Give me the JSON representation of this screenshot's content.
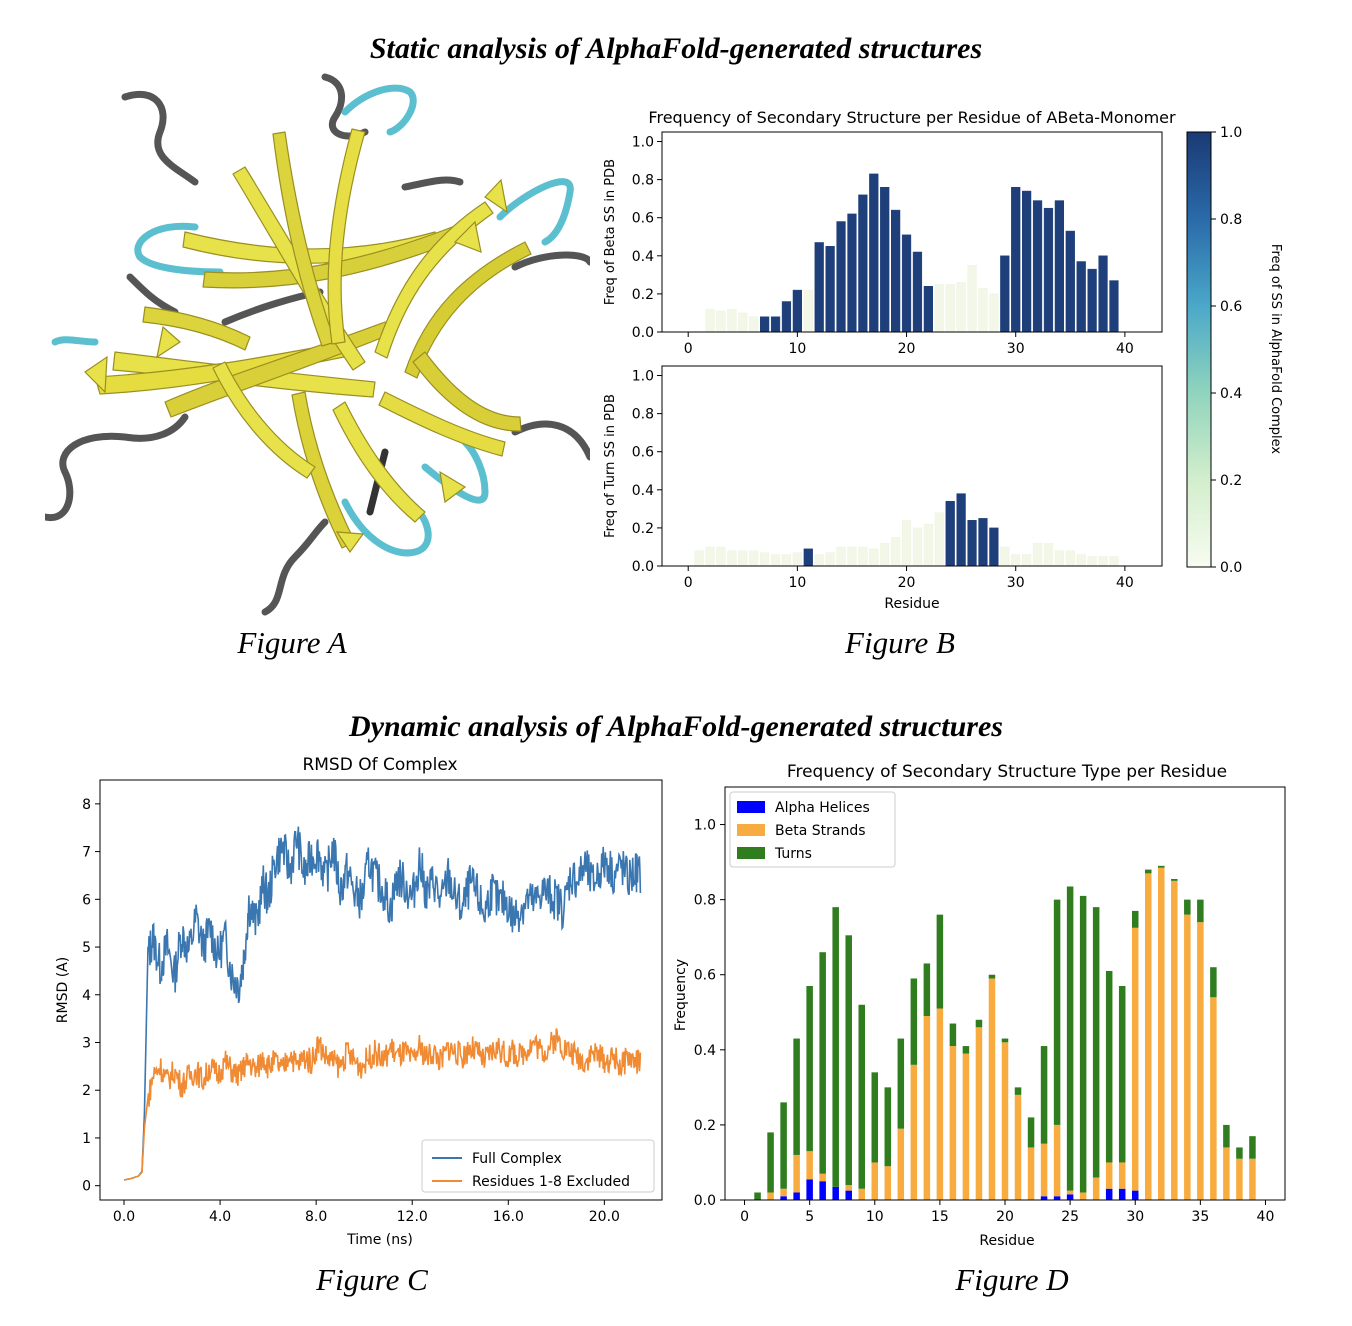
{
  "titles": {
    "static": "Static analysis of AlphaFold-generated structures",
    "dynamic": "Dynamic analysis of AlphaFold-generated structures"
  },
  "captions": {
    "a": "Figure A",
    "b": "Figure B",
    "c": "Figure C",
    "d": "Figure D"
  },
  "colors": {
    "strand": "#e8e24a",
    "strand_shade": "#b8ac2a",
    "coil": "#555555",
    "turn": "#5bbfd0",
    "dark_blue": "#1f3f7a",
    "pale": "#f3f7e8",
    "blue_series": "#3a76b0",
    "orange_series": "#f08a33",
    "alpha": "#0000ff",
    "beta": "#f8ac40",
    "turns": "#2f7d1f"
  },
  "chart_data": [
    {
      "id": "B",
      "type": "bar",
      "title": "Frequency of Secondary Structure per Residue of ABeta-Monomer",
      "colorbar_label": "Freq of SS in AlphaFold Complex",
      "colorbar_ticks": [
        "0.0",
        "0.2",
        "0.4",
        "0.6",
        "0.8",
        "1.0"
      ],
      "xlabel": "Residue",
      "x": [
        0,
        1,
        2,
        3,
        4,
        5,
        6,
        7,
        8,
        9,
        10,
        11,
        12,
        13,
        14,
        15,
        16,
        17,
        18,
        19,
        20,
        21,
        22,
        23,
        24,
        25,
        26,
        27,
        28,
        29,
        30,
        31,
        32,
        33,
        34,
        35,
        36,
        37,
        38,
        39,
        40
      ],
      "xticks": [
        "0",
        "10",
        "20",
        "30",
        "40"
      ],
      "yticks": [
        "0.0",
        "0.2",
        "0.4",
        "0.6",
        "0.8",
        "1.0"
      ],
      "panels": [
        {
          "ylabel": "Freq of Beta SS in PDB",
          "ylim": [
            0,
            1.05
          ],
          "values": [
            0,
            0,
            0.12,
            0.11,
            0.12,
            0.1,
            0.08,
            0.08,
            0.08,
            0.16,
            0.22,
            0.22,
            0.47,
            0.45,
            0.58,
            0.62,
            0.72,
            0.83,
            0.76,
            0.64,
            0.51,
            0.42,
            0.24,
            0.25,
            0.25,
            0.26,
            0.35,
            0.23,
            0.2,
            0.4,
            0.76,
            0.74,
            0.69,
            0.65,
            0.69,
            0.53,
            0.37,
            0.33,
            0.4,
            0.27,
            0
          ],
          "highlight": [
            false,
            false,
            false,
            false,
            false,
            false,
            false,
            true,
            true,
            true,
            true,
            false,
            true,
            true,
            true,
            true,
            true,
            true,
            true,
            true,
            true,
            true,
            true,
            false,
            false,
            false,
            false,
            false,
            false,
            true,
            true,
            true,
            true,
            true,
            true,
            true,
            true,
            true,
            true,
            true,
            false
          ]
        },
        {
          "ylabel": "Freq of Turn SS in PDB",
          "ylim": [
            0,
            1.05
          ],
          "values": [
            0,
            0.08,
            0.1,
            0.1,
            0.08,
            0.08,
            0.08,
            0.07,
            0.06,
            0.06,
            0.07,
            0.09,
            0.06,
            0.07,
            0.1,
            0.1,
            0.1,
            0.09,
            0.12,
            0.15,
            0.24,
            0.2,
            0.22,
            0.28,
            0.34,
            0.38,
            0.24,
            0.25,
            0.2,
            0.1,
            0.06,
            0.06,
            0.12,
            0.12,
            0.08,
            0.08,
            0.06,
            0.05,
            0.05,
            0.05,
            0
          ],
          "highlight": [
            false,
            false,
            false,
            false,
            false,
            false,
            false,
            false,
            false,
            false,
            false,
            true,
            false,
            false,
            false,
            false,
            false,
            false,
            false,
            false,
            false,
            false,
            false,
            false,
            true,
            true,
            true,
            true,
            true,
            false,
            false,
            false,
            false,
            false,
            false,
            false,
            false,
            false,
            false,
            false,
            false
          ]
        }
      ]
    },
    {
      "id": "C",
      "type": "line",
      "title": "RMSD Of Complex",
      "xlabel": "Time (ns)",
      "ylabel": "RMSD (A)",
      "xlim": [
        -1,
        22.4
      ],
      "ylim": [
        -0.3,
        8.5
      ],
      "xticks": [
        "0.0",
        "4.0",
        "8.0",
        "12.0",
        "16.0",
        "20.0"
      ],
      "yticks": [
        "0",
        "1",
        "2",
        "3",
        "4",
        "5",
        "6",
        "7",
        "8"
      ],
      "legend_position": "lower-right",
      "series": [
        {
          "name": "Full Complex",
          "x": [
            0,
            0.3,
            0.6,
            0.75,
            0.85,
            1,
            1.2,
            1.5,
            1.8,
            2.1,
            2.4,
            2.7,
            3,
            3.3,
            3.6,
            3.9,
            4.2,
            4.5,
            4.8,
            5,
            5.2,
            5.5,
            5.8,
            6,
            6.3,
            6.6,
            6.9,
            7.2,
            7.5,
            7.8,
            8.1,
            8.4,
            8.7,
            9,
            9.3,
            9.6,
            9.9,
            10.2,
            10.5,
            10.8,
            11.1,
            11.4,
            11.7,
            12,
            12.3,
            12.6,
            12.9,
            13.2,
            13.5,
            13.8,
            14.1,
            14.4,
            14.7,
            15,
            15.3,
            15.6,
            15.9,
            16.2,
            16.5,
            16.8,
            17.1,
            17.4,
            17.7,
            18,
            18.3,
            18.6,
            18.9,
            19.2,
            19.5,
            19.8,
            20.1,
            20.4,
            20.7,
            21,
            21.3,
            21.5
          ],
          "y": [
            0.12,
            0.15,
            0.2,
            0.3,
            1.5,
            4.8,
            5.2,
            4.6,
            5.0,
            4.4,
            5.3,
            4.9,
            5.6,
            5.0,
            5.4,
            4.8,
            5.2,
            4.4,
            4.2,
            4.8,
            5.9,
            5.5,
            6.3,
            6.0,
            6.8,
            7.1,
            6.6,
            7.3,
            6.5,
            6.9,
            7.0,
            6.4,
            7.1,
            6.2,
            6.6,
            6.1,
            6.0,
            6.8,
            6.4,
            6.2,
            5.8,
            6.5,
            6.3,
            6.0,
            6.8,
            6.1,
            6.4,
            5.9,
            6.5,
            6.0,
            5.8,
            6.3,
            6.1,
            5.7,
            6.2,
            5.9,
            6.0,
            5.6,
            5.8,
            6.0,
            5.9,
            6.2,
            6.1,
            6.0,
            5.8,
            6.5,
            6.4,
            6.7,
            6.3,
            6.6,
            6.8,
            6.5,
            6.7,
            6.4,
            6.6,
            6.5
          ]
        },
        {
          "name": "Residues 1-8 Excluded",
          "x": [
            0,
            0.3,
            0.6,
            0.75,
            0.85,
            1,
            1.2,
            1.5,
            1.8,
            2.1,
            2.4,
            2.7,
            3,
            3.3,
            3.6,
            3.9,
            4.2,
            4.5,
            4.8,
            5,
            5.2,
            5.5,
            5.8,
            6,
            6.3,
            6.6,
            6.9,
            7.2,
            7.5,
            7.8,
            8.1,
            8.4,
            8.7,
            9,
            9.3,
            9.6,
            9.9,
            10.2,
            10.5,
            10.8,
            11.1,
            11.4,
            11.7,
            12,
            12.3,
            12.6,
            12.9,
            13.2,
            13.5,
            13.8,
            14.1,
            14.4,
            14.7,
            15,
            15.3,
            15.6,
            15.9,
            16.2,
            16.5,
            16.8,
            17.1,
            17.4,
            17.7,
            18,
            18.3,
            18.6,
            18.9,
            19.2,
            19.5,
            19.8,
            20.1,
            20.4,
            20.7,
            21,
            21.3,
            21.5
          ],
          "y": [
            0.12,
            0.15,
            0.2,
            0.28,
            1.2,
            1.8,
            2.3,
            2.5,
            2.2,
            2.4,
            2.1,
            2.3,
            2.4,
            2.2,
            2.5,
            2.3,
            2.6,
            2.4,
            2.3,
            2.5,
            2.6,
            2.4,
            2.7,
            2.5,
            2.6,
            2.4,
            2.8,
            2.5,
            2.7,
            2.6,
            3.0,
            2.7,
            2.6,
            2.5,
            2.8,
            2.6,
            2.5,
            2.7,
            2.8,
            2.6,
            2.9,
            2.7,
            2.8,
            2.6,
            2.9,
            2.7,
            2.8,
            2.6,
            2.9,
            2.8,
            2.7,
            2.9,
            2.8,
            2.6,
            2.8,
            2.9,
            2.7,
            2.8,
            2.7,
            2.9,
            3.0,
            2.8,
            2.9,
            3.1,
            2.9,
            2.8,
            2.7,
            2.6,
            2.8,
            2.7,
            2.6,
            2.7,
            2.5,
            2.7,
            2.6,
            2.6
          ]
        }
      ]
    },
    {
      "id": "D",
      "type": "bar",
      "title": "Frequency of Secondary Structure Type per Residue",
      "xlabel": "Residue",
      "ylabel": "Frequency",
      "xlim": [
        -1.5,
        41.5
      ],
      "ylim": [
        0,
        1.1
      ],
      "xticks": [
        "0",
        "5",
        "10",
        "15",
        "20",
        "25",
        "30",
        "35",
        "40"
      ],
      "yticks": [
        "0.0",
        "0.2",
        "0.4",
        "0.6",
        "0.8",
        "1.0"
      ],
      "legend_position": "top-left",
      "categories": [
        1,
        2,
        3,
        4,
        5,
        6,
        7,
        8,
        9,
        10,
        11,
        12,
        13,
        14,
        15,
        16,
        17,
        18,
        19,
        20,
        21,
        22,
        23,
        24,
        25,
        26,
        27,
        28,
        29,
        30,
        31,
        32,
        33,
        34,
        35,
        36,
        37,
        38,
        39
      ],
      "series": [
        {
          "name": "Alpha Helices",
          "values": [
            0,
            0,
            0.01,
            0.02,
            0.055,
            0.05,
            0.035,
            0.025,
            0,
            0,
            0,
            0,
            0,
            0,
            0,
            0,
            0,
            0,
            0,
            0,
            0,
            0,
            0.01,
            0.01,
            0.015,
            0,
            0,
            0.03,
            0.03,
            0.025,
            0,
            0,
            0,
            0,
            0,
            0,
            0,
            0,
            0
          ]
        },
        {
          "name": "Beta Strands",
          "values": [
            0,
            0.02,
            0.02,
            0.1,
            0.075,
            0.02,
            0,
            0.015,
            0.03,
            0.1,
            0.09,
            0.19,
            0.36,
            0.49,
            0.51,
            0.41,
            0.39,
            0.46,
            0.59,
            0.42,
            0.28,
            0.14,
            0.14,
            0.19,
            0.01,
            0.02,
            0.06,
            0.07,
            0.07,
            0.7,
            0.87,
            0.885,
            0.85,
            0.76,
            0.74,
            0.54,
            0.14,
            0.11,
            0.11
          ]
        },
        {
          "name": "Turns",
          "values": [
            0.02,
            0.16,
            0.23,
            0.31,
            0.44,
            0.59,
            0.745,
            0.665,
            0.49,
            0.24,
            0.21,
            0.24,
            0.23,
            0.14,
            0.25,
            0.06,
            0.02,
            0.02,
            0.01,
            0.01,
            0.02,
            0.08,
            0.26,
            0.6,
            0.81,
            0.79,
            0.72,
            0.51,
            0.47,
            0.045,
            0.01,
            0.005,
            0.005,
            0.04,
            0.06,
            0.08,
            0.06,
            0.03,
            0.06
          ]
        }
      ]
    }
  ]
}
